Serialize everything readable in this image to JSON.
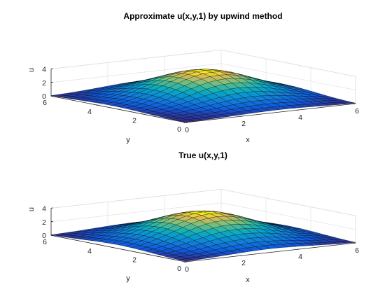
{
  "figure": {
    "background": "#ffffff",
    "colormap": "parula"
  },
  "chart_data": [
    {
      "type": "surface",
      "title": "Approximate u(x,y,1) by upwind method",
      "xlabel": "x",
      "ylabel": "y",
      "zlabel": "u",
      "xlim": [
        0,
        6
      ],
      "ylim": [
        0,
        6
      ],
      "zlim": [
        0,
        4
      ],
      "x_ticks": [
        "0",
        "2",
        "4",
        "6"
      ],
      "y_ticks": [
        "0",
        "2",
        "4",
        "6"
      ],
      "z_ticks": [
        "0",
        "2",
        "4"
      ],
      "grid": true,
      "mesh": "21x21 grid on [0,6]x[0,6]",
      "surface": "u(x,y) ≈ 4·exp(-((x-3.3)² + (y-3.3)²)/4.5)",
      "peak": {
        "x": 3.3,
        "y": 3.3,
        "u": 4.0
      },
      "peak_value": 4.0,
      "edge_value_at_corners": 0.0
    },
    {
      "type": "surface",
      "title": "True u(x,y,1)",
      "xlabel": "x",
      "ylabel": "y",
      "zlabel": "u",
      "xlim": [
        0,
        6
      ],
      "ylim": [
        0,
        6
      ],
      "zlim": [
        0,
        4
      ],
      "x_ticks": [
        "0",
        "2",
        "4",
        "6"
      ],
      "y_ticks": [
        "0",
        "2",
        "4",
        "6"
      ],
      "z_ticks": [
        "0",
        "2",
        "4"
      ],
      "grid": true,
      "mesh": "21x21 grid on [0,6]x[0,6]",
      "surface": "u(x,y) = 4·exp(-((x-3)² + (y-3)²)/4.5)",
      "peak": {
        "x": 3.0,
        "y": 3.0,
        "u": 4.0
      },
      "peak_value": 4.0,
      "edge_value_at_corners": 0.0
    }
  ]
}
